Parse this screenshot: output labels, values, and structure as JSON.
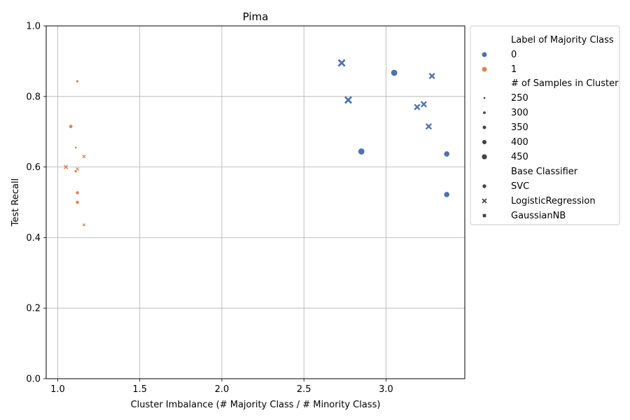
{
  "chart_data": {
    "type": "scatter",
    "title": "Pima",
    "xlabel": "Cluster Imbalance (# Majority Class / # Minority Class)",
    "ylabel": "Test Recall",
    "xlim": [
      0.93,
      3.48
    ],
    "ylim": [
      0.0,
      1.0
    ],
    "xticks": [
      1.0,
      1.5,
      2.0,
      2.5,
      3.0
    ],
    "yticks": [
      0.0,
      0.2,
      0.4,
      0.6,
      0.8,
      1.0
    ],
    "xtick_labels": [
      "1.0",
      "1.5",
      "2.0",
      "2.5",
      "3.0"
    ],
    "ytick_labels": [
      "0.0",
      "0.2",
      "0.4",
      "0.6",
      "0.8",
      "1.0"
    ],
    "grid": true,
    "legend_position": "outside-right",
    "colors": {
      "0": "#4c72b0",
      "1": "#dd8452"
    },
    "legend": {
      "hue_title": "Label of Majority Class",
      "hue_items": [
        {
          "label": "0",
          "color": "#4c72b0"
        },
        {
          "label": "1",
          "color": "#dd8452"
        }
      ],
      "size_title": "# of Samples in Cluster",
      "size_items": [
        {
          "label": "250",
          "size": 250
        },
        {
          "label": "300",
          "size": 300
        },
        {
          "label": "350",
          "size": 350
        },
        {
          "label": "400",
          "size": 400
        },
        {
          "label": "450",
          "size": 450
        }
      ],
      "style_title": "Base Classifier",
      "style_items": [
        {
          "label": "SVC",
          "marker": "circle"
        },
        {
          "label": "LogisticRegression",
          "marker": "x"
        },
        {
          "label": "GaussianNB",
          "marker": "square"
        }
      ]
    },
    "points": [
      {
        "x": 2.73,
        "y": 0.895,
        "label": 0,
        "size": 430,
        "marker": "x"
      },
      {
        "x": 3.05,
        "y": 0.867,
        "label": 0,
        "size": 440,
        "marker": "circle"
      },
      {
        "x": 3.28,
        "y": 0.858,
        "label": 0,
        "size": 380,
        "marker": "x"
      },
      {
        "x": 2.77,
        "y": 0.79,
        "label": 0,
        "size": 430,
        "marker": "x"
      },
      {
        "x": 3.23,
        "y": 0.778,
        "label": 0,
        "size": 380,
        "marker": "x"
      },
      {
        "x": 3.19,
        "y": 0.77,
        "label": 0,
        "size": 380,
        "marker": "x"
      },
      {
        "x": 3.26,
        "y": 0.715,
        "label": 0,
        "size": 380,
        "marker": "x"
      },
      {
        "x": 2.85,
        "y": 0.644,
        "label": 0,
        "size": 440,
        "marker": "circle"
      },
      {
        "x": 3.37,
        "y": 0.637,
        "label": 0,
        "size": 400,
        "marker": "circle"
      },
      {
        "x": 3.37,
        "y": 0.522,
        "label": 0,
        "size": 400,
        "marker": "circle"
      },
      {
        "x": 1.12,
        "y": 0.843,
        "label": 1,
        "size": 260,
        "marker": "circle"
      },
      {
        "x": 1.08,
        "y": 0.715,
        "label": 1,
        "size": 310,
        "marker": "circle"
      },
      {
        "x": 1.11,
        "y": 0.655,
        "label": 1,
        "size": 240,
        "marker": "square"
      },
      {
        "x": 1.16,
        "y": 0.63,
        "label": 1,
        "size": 270,
        "marker": "x"
      },
      {
        "x": 1.05,
        "y": 0.6,
        "label": 1,
        "size": 300,
        "marker": "x"
      },
      {
        "x": 1.12,
        "y": 0.594,
        "label": 1,
        "size": 270,
        "marker": "x"
      },
      {
        "x": 1.11,
        "y": 0.588,
        "label": 1,
        "size": 270,
        "marker": "square"
      },
      {
        "x": 1.12,
        "y": 0.527,
        "label": 1,
        "size": 300,
        "marker": "circle"
      },
      {
        "x": 1.12,
        "y": 0.5,
        "label": 1,
        "size": 300,
        "marker": "circle"
      },
      {
        "x": 1.16,
        "y": 0.436,
        "label": 1,
        "size": 240,
        "marker": "x"
      }
    ]
  }
}
